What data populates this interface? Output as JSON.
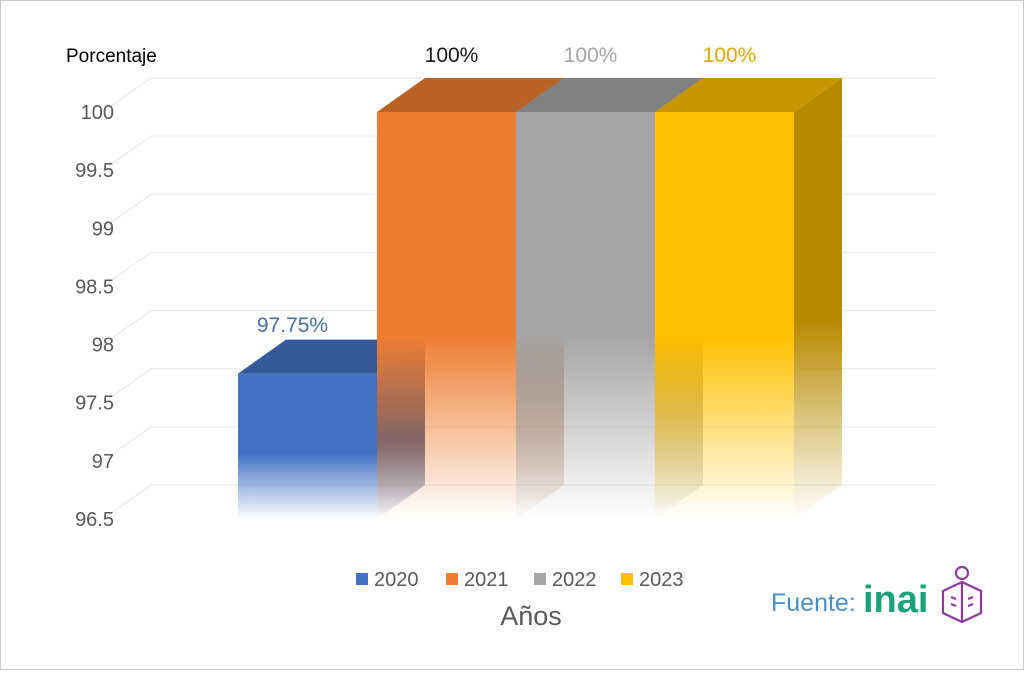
{
  "chart_data": {
    "type": "bar",
    "title": "",
    "ylabel": "Porcentaje",
    "xlabel": "Años",
    "ylim": [
      96.5,
      100
    ],
    "yticks": [
      96.5,
      97,
      97.5,
      98,
      98.5,
      99,
      99.5,
      100
    ],
    "ytick_labels": [
      "96.5",
      "97",
      "97.5",
      "98",
      "98.5",
      "99",
      "99.5",
      "100"
    ],
    "grid": true,
    "legend_position": "bottom",
    "categories": [
      "2020",
      "2021",
      "2022",
      "2023"
    ],
    "series": [
      {
        "name": "2020",
        "value": 97.75,
        "label": "97.75%",
        "color": "#4472c4",
        "label_color": "#4a6fa5"
      },
      {
        "name": "2021",
        "value": 100,
        "label": "100%",
        "color": "#ed7d31",
        "label_color": "#1a1a1a"
      },
      {
        "name": "2022",
        "value": 100,
        "label": "100%",
        "color": "#a5a5a5",
        "label_color": "#a5a5a5"
      },
      {
        "name": "2023",
        "value": 100,
        "label": "100%",
        "color": "#ffc000",
        "label_color": "#e0a800"
      }
    ]
  },
  "source": {
    "prefix": "Fuente:",
    "brand": "inai",
    "prefix_color": "#4a90c8",
    "brand_color": "#1aa37a",
    "icon_color": "#8e3a9e"
  }
}
